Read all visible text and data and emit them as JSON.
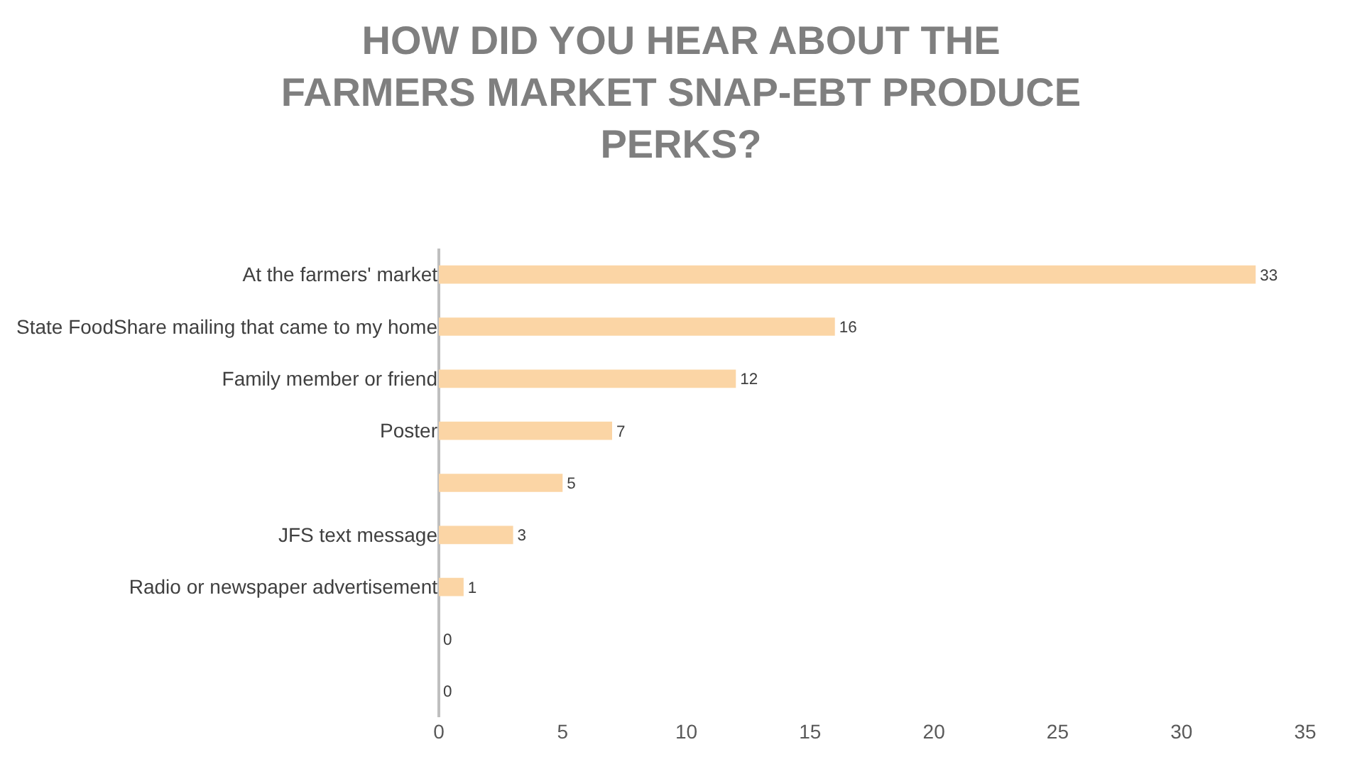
{
  "chart_data": {
    "type": "bar",
    "orientation": "horizontal",
    "title": "HOW DID YOU HEAR ABOUT THE FARMERS MARKET SNAP-EBT PRODUCE PERKS?",
    "categories": [
      "At the farmers' market",
      "State FoodShare mailing that came to my home",
      "Family member or friend",
      "Poster",
      null,
      "JFS text message",
      "Radio or newspaper advertisement",
      null,
      null
    ],
    "values": [
      33,
      16,
      12,
      7,
      5,
      3,
      1,
      0,
      0
    ],
    "color": "#fbd5a5",
    "xlim": [
      0,
      35
    ],
    "xticks": [
      0,
      5,
      10,
      15,
      20,
      25,
      30,
      35
    ],
    "data_labels": true
  }
}
